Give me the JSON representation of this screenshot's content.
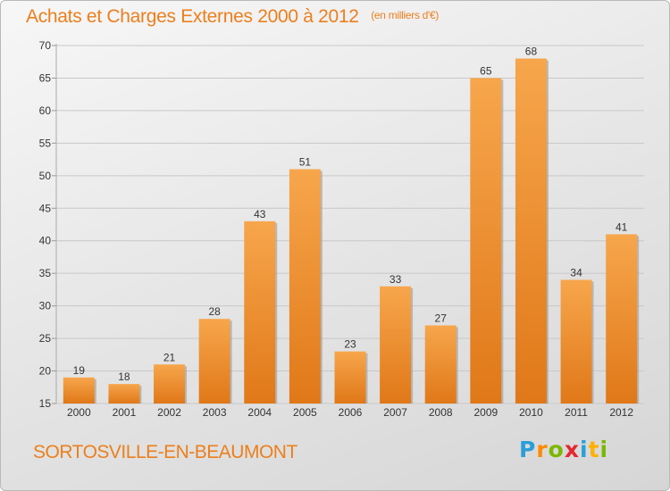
{
  "header": {
    "title": "Achats et Charges Externes 2000 à 2012",
    "unit": "(en milliers d'€)"
  },
  "footer": {
    "commune": "SORTOSVILLE-EN-BEAUMONT",
    "logo": {
      "p": "P",
      "r": "r",
      "o": "o",
      "x": "x",
      "i": "i",
      "t": "t",
      "i2": "i"
    }
  },
  "colors": {
    "accent": "#ec7f1d",
    "bar_top": "#f7a64c",
    "bar_bottom": "#e07818",
    "bar_shadow": "#9a9a9a",
    "grid": "#c8c8c8",
    "axis_text": "#333333"
  },
  "chart_data": {
    "type": "bar",
    "title": "Achats et Charges Externes 2000 à 2012",
    "subtitle": "(en milliers d'€)",
    "xlabel": "",
    "ylabel": "",
    "categories": [
      "2000",
      "2001",
      "2002",
      "2003",
      "2004",
      "2005",
      "2006",
      "2007",
      "2008",
      "2009",
      "2010",
      "2011",
      "2012"
    ],
    "values": [
      19,
      18,
      21,
      28,
      43,
      51,
      23,
      33,
      27,
      65,
      68,
      34,
      41
    ],
    "ylim": [
      15,
      70
    ],
    "yticks": [
      15,
      20,
      25,
      30,
      35,
      40,
      45,
      50,
      55,
      60,
      65,
      70
    ],
    "grid": true,
    "data_labels": true,
    "legend": "none"
  }
}
